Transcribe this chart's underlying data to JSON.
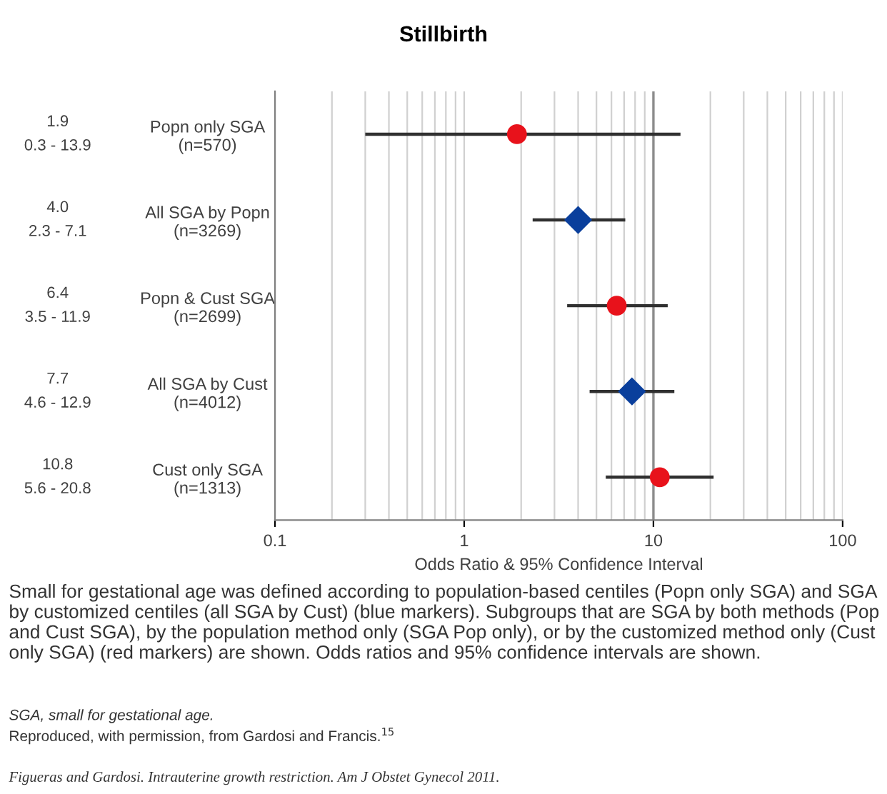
{
  "chart_data": {
    "type": "scatter",
    "orientation": "horizontal",
    "title": "Stillbirth",
    "xlabel": "Odds Ratio & 95% Confidence Interval",
    "categories": [
      "Popn only SGA\n(n=570)",
      "All SGA by Popn\n(n=3269)",
      "Popn & Cust SGA\n(n=2699)",
      "All SGA by Cust\n(n=4012)",
      "Cust only SGA\n(n=1313)"
    ],
    "series": [
      {
        "color": "#e8121b",
        "marker": "circle",
        "values": [
          1.9,
          null,
          6.4,
          null,
          10.8
        ],
        "errors": [
          [
            0.3,
            13.9
          ],
          null,
          [
            3.5,
            11.9
          ],
          null,
          [
            5.6,
            20.8
          ]
        ]
      },
      {
        "color": "#0a3f9c",
        "marker": "diamond",
        "values": [
          null,
          4.0,
          null,
          7.7,
          null
        ],
        "errors": [
          null,
          [
            2.3,
            7.1
          ],
          null,
          [
            4.6,
            12.9
          ],
          null
        ]
      }
    ],
    "log": "x",
    "xlim": [
      0.1,
      100
    ],
    "xticks": [
      0.1,
      {
        "value": 0.2,
        "label": null
      },
      {
        "value": 0.3,
        "label": null
      },
      {
        "value": 0.4,
        "label": null
      },
      {
        "value": 0.5,
        "label": null
      },
      {
        "value": 0.6,
        "label": null
      },
      {
        "value": 0.7,
        "label": null
      },
      {
        "value": 0.8,
        "label": null
      },
      {
        "value": 0.9,
        "label": null
      },
      1,
      {
        "value": 2,
        "label": null
      },
      {
        "value": 3,
        "label": null
      },
      {
        "value": 4,
        "label": null
      },
      {
        "value": 5,
        "label": null
      },
      {
        "value": 6,
        "label": null
      },
      {
        "value": 7,
        "label": null
      },
      {
        "value": 8,
        "label": null
      },
      {
        "value": 9,
        "label": null
      },
      10,
      {
        "value": 20,
        "label": null
      },
      {
        "value": 30,
        "label": null
      },
      {
        "value": 40,
        "label": null
      },
      {
        "value": 50,
        "label": null
      },
      {
        "value": 60,
        "label": null
      },
      {
        "value": 70,
        "label": null
      },
      {
        "value": 80,
        "label": null
      },
      {
        "value": 90,
        "label": null
      },
      100
    ],
    "grid": "x",
    "ref_lines": [
      {
        "axis": "x",
        "value": 10,
        "color": "#8c8c8c"
      }
    ],
    "annotations": [
      "1.9\n0.3 - 13.9",
      "4.0\n2.3 - 7.1",
      "6.4\n3.5 - 11.9",
      "7.7\n4.6 - 12.9",
      "10.8\n5.6 - 20.8",
      "Small for gestational age was defined according to population-based centiles (Popn only SGA) and SGA by customized centiles (all SGA by Cust) (blue markers). Subgroups that are SGA by both methods (Pop and Cust SGA), by the population method only (SGA Pop only), or by the customized method only (Cust only SGA) (red markers) are shown. Odds ratios and 95% confidence intervals are shown.",
      "SGA, small for gestational age.",
      "Reproduced, with permission, from Gardosi and Francis.$^{15}$",
      "Figueras and Gardosi. Intrauterine growth restriction. Am J Obstet Gynecol 2011."
    ]
  }
}
